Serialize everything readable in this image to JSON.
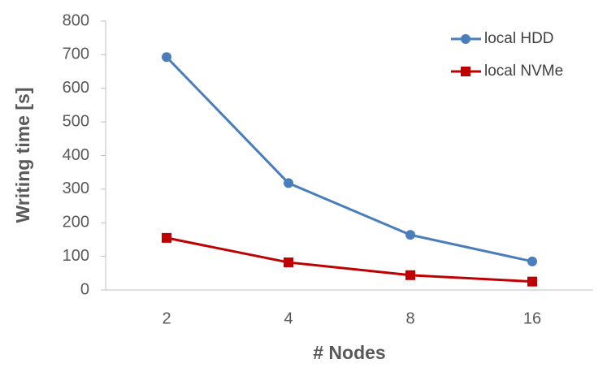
{
  "chart_data": {
    "type": "line",
    "x_label": "# Nodes",
    "y_label": "Writing time [s]",
    "categories": [
      "2",
      "4",
      "8",
      "16"
    ],
    "series": [
      {
        "name": "local HDD",
        "color": "#4a7ebb",
        "marker": "circle",
        "values": [
          693,
          318,
          164,
          85
        ]
      },
      {
        "name": "local NVMe",
        "color": "#c00000",
        "marker": "square",
        "values": [
          155,
          82,
          44,
          25
        ]
      }
    ],
    "ylim": [
      0,
      800
    ],
    "yticks": [
      0,
      100,
      200,
      300,
      400,
      500,
      600,
      700,
      800
    ],
    "grid": false,
    "legend": "top-right"
  }
}
